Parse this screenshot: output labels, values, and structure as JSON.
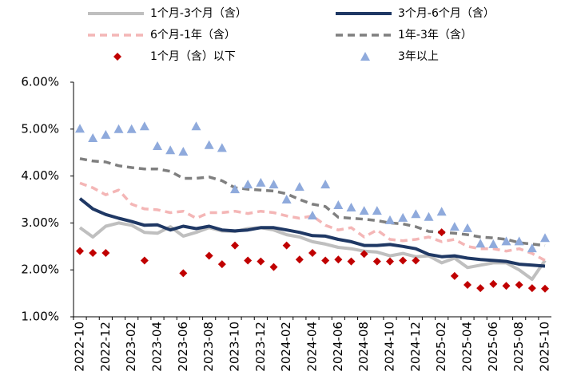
{
  "chart_data": {
    "type": "line",
    "categories": [
      "2022-10",
      null,
      "2022-12",
      null,
      "2023-02",
      null,
      "2023-04",
      null,
      "2023-06",
      null,
      "2023-08",
      null,
      "2023-10",
      null,
      "2023-12",
      null,
      "2024-02",
      null,
      "2024-04",
      null,
      "2024-06",
      null,
      "2024-08",
      null,
      "2024-10",
      null,
      "2024-12",
      null,
      "2025-02",
      null,
      "2025-04",
      null,
      "2025-06",
      null,
      "2025-08",
      null,
      "2025-10"
    ],
    "ylim": [
      1,
      6
    ],
    "yticks": [
      {
        "value": 1,
        "label": "1.00%"
      },
      {
        "value": 2,
        "label": "2.00%"
      },
      {
        "value": 3,
        "label": "3.00%"
      },
      {
        "value": 4,
        "label": "4.00%"
      },
      {
        "value": 5,
        "label": "5.00%"
      },
      {
        "value": 6,
        "label": "6.00%"
      }
    ],
    "series": [
      {
        "name": "1个月-3个月（含）",
        "color": "#bfbfbf",
        "style": "solid",
        "values": [
          2.9,
          2.7,
          2.93,
          3.0,
          2.95,
          2.8,
          2.78,
          2.92,
          2.72,
          2.8,
          2.9,
          2.83,
          2.82,
          2.88,
          2.9,
          2.85,
          2.75,
          2.7,
          2.6,
          2.55,
          2.48,
          2.45,
          2.4,
          2.38,
          2.3,
          2.35,
          2.28,
          2.3,
          2.15,
          2.25,
          2.05,
          2.1,
          2.15,
          2.15,
          2.0,
          1.8,
          2.2
        ]
      },
      {
        "name": "3个月-6个月（含）",
        "color": "#1f3864",
        "style": "solid",
        "values": [
          3.52,
          3.3,
          3.18,
          3.1,
          3.03,
          2.95,
          2.96,
          2.85,
          2.93,
          2.88,
          2.93,
          2.85,
          2.83,
          2.85,
          2.9,
          2.9,
          2.85,
          2.8,
          2.73,
          2.72,
          2.65,
          2.6,
          2.52,
          2.52,
          2.54,
          2.5,
          2.45,
          2.33,
          2.28,
          2.3,
          2.25,
          2.22,
          2.2,
          2.18,
          2.12,
          2.1,
          2.08
        ]
      },
      {
        "name": "6个月-1年（含）",
        "color": "#f4b6b6",
        "style": "dash",
        "values": [
          3.85,
          3.75,
          3.6,
          3.7,
          3.4,
          3.3,
          3.28,
          3.22,
          3.25,
          3.1,
          3.22,
          3.22,
          3.25,
          3.2,
          3.25,
          3.22,
          3.15,
          3.1,
          3.15,
          2.95,
          2.85,
          2.9,
          2.7,
          2.85,
          2.65,
          2.62,
          2.65,
          2.7,
          2.6,
          2.65,
          2.5,
          2.45,
          2.45,
          2.4,
          2.45,
          2.35,
          2.2
        ]
      },
      {
        "name": "1年-3年（含）",
        "color": "#7f7f7f",
        "style": "dash",
        "values": [
          4.37,
          4.32,
          4.3,
          4.22,
          4.18,
          4.15,
          4.15,
          4.1,
          3.95,
          3.95,
          3.98,
          3.9,
          3.75,
          3.72,
          3.7,
          3.68,
          3.62,
          3.5,
          3.4,
          3.35,
          3.12,
          3.1,
          3.08,
          3.05,
          3.0,
          2.98,
          2.92,
          2.82,
          2.8,
          2.78,
          2.75,
          2.7,
          2.68,
          2.65,
          2.58,
          2.55,
          2.52
        ]
      },
      {
        "name": "1个月（含）以下",
        "color": "#c00000",
        "style": "marker",
        "marker": "diamond",
        "values": [
          2.4,
          2.36,
          2.36,
          null,
          null,
          2.2,
          null,
          null,
          1.93,
          null,
          2.3,
          2.12,
          2.52,
          2.2,
          2.18,
          2.06,
          2.52,
          2.22,
          2.36,
          2.2,
          2.22,
          2.18,
          2.34,
          2.18,
          2.18,
          2.2,
          2.2,
          null,
          2.8,
          1.87,
          1.68,
          1.61,
          1.7,
          1.66,
          1.68,
          1.61,
          1.6
        ]
      },
      {
        "name": "3年以上",
        "color": "#8faadc",
        "style": "marker",
        "marker": "triangle",
        "values": [
          5.01,
          4.81,
          4.88,
          5.0,
          5.0,
          5.06,
          4.64,
          4.55,
          4.52,
          5.06,
          4.66,
          4.6,
          3.72,
          3.82,
          3.86,
          3.82,
          3.5,
          3.77,
          3.16,
          3.82,
          3.38,
          3.33,
          3.26,
          3.26,
          3.06,
          3.11,
          3.19,
          3.13,
          3.24,
          2.92,
          2.89,
          2.56,
          2.55,
          2.61,
          2.61,
          2.46,
          2.68
        ]
      }
    ]
  }
}
